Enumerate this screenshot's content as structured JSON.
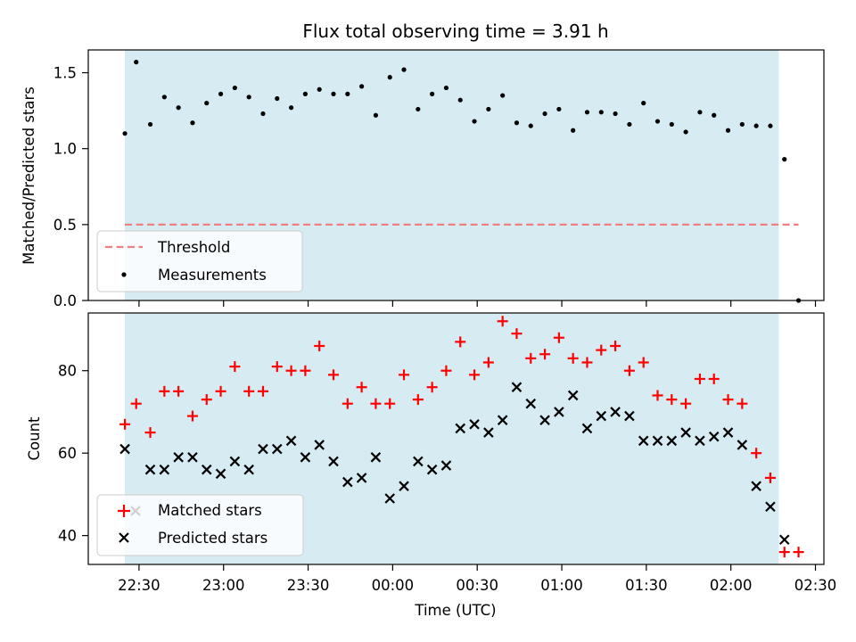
{
  "chart_data": [
    {
      "type": "scatter",
      "title": "Flux total observing time = 3.91 h",
      "xlabel": "",
      "ylabel": "Matched/Predicted stars",
      "ylim": [
        0,
        1.65
      ],
      "yticks": [
        "0.0",
        "0.5",
        "1.0",
        "1.5"
      ],
      "shaded_region_color": "#add8e6",
      "threshold": {
        "name": "Threshold",
        "value": 0.5,
        "color": "#f08080"
      },
      "series": [
        {
          "name": "Measurements",
          "color": "#000000",
          "x": [
            "22:25",
            "22:29",
            "22:34",
            "22:39",
            "22:44",
            "22:49",
            "22:54",
            "22:59",
            "23:04",
            "23:09",
            "23:14",
            "23:19",
            "23:24",
            "23:29",
            "23:34",
            "23:39",
            "23:44",
            "23:49",
            "23:54",
            "23:59",
            "24:04",
            "24:09",
            "24:14",
            "24:19",
            "24:24",
            "24:29",
            "24:34",
            "24:39",
            "24:44",
            "24:49",
            "24:54",
            "24:59",
            "25:04",
            "25:09",
            "25:14",
            "25:19",
            "25:24",
            "25:29",
            "25:34",
            "25:39",
            "25:44",
            "25:49",
            "25:54",
            "25:59",
            "26:04",
            "26:09",
            "26:14",
            "26:19",
            "26:24"
          ],
          "values": [
            1.1,
            1.57,
            1.16,
            1.34,
            1.27,
            1.17,
            1.3,
            1.36,
            1.4,
            1.34,
            1.23,
            1.33,
            1.27,
            1.36,
            1.39,
            1.36,
            1.36,
            1.41,
            1.22,
            1.47,
            1.52,
            1.26,
            1.36,
            1.4,
            1.32,
            1.18,
            1.26,
            1.35,
            1.17,
            1.15,
            1.23,
            1.26,
            1.12,
            1.24,
            1.24,
            1.23,
            1.16,
            1.3,
            1.18,
            1.16,
            1.11,
            1.24,
            1.22,
            1.12,
            1.16,
            1.15,
            1.15,
            0.93,
            0.0
          ]
        }
      ],
      "legend": "lower-left"
    },
    {
      "type": "scatter",
      "xlabel": "Time (UTC)",
      "ylabel": "Count",
      "ylim": [
        33,
        94
      ],
      "yticks": [
        "40",
        "60",
        "80"
      ],
      "xticks": [
        "22:30",
        "23:00",
        "23:30",
        "00:00",
        "00:30",
        "01:00",
        "01:30",
        "02:00",
        "02:30"
      ],
      "shaded_region_color": "#add8e6",
      "series": [
        {
          "name": "Matched stars",
          "marker": "plus",
          "color": "#ff0000",
          "x": [
            "22:25",
            "22:29",
            "22:34",
            "22:39",
            "22:44",
            "22:49",
            "22:54",
            "22:59",
            "23:04",
            "23:09",
            "23:14",
            "23:19",
            "23:24",
            "23:29",
            "23:34",
            "23:39",
            "23:44",
            "23:49",
            "23:54",
            "23:59",
            "24:04",
            "24:09",
            "24:14",
            "24:19",
            "24:24",
            "24:29",
            "24:34",
            "24:39",
            "24:44",
            "24:49",
            "24:54",
            "24:59",
            "25:04",
            "25:09",
            "25:14",
            "25:19",
            "25:24",
            "25:29",
            "25:34",
            "25:39",
            "25:44",
            "25:49",
            "25:54",
            "25:59",
            "26:04",
            "26:09",
            "26:14",
            "26:19",
            "26:24"
          ],
          "values": [
            67,
            72,
            65,
            75,
            75,
            69,
            73,
            75,
            81,
            75,
            75,
            81,
            80,
            80,
            86,
            79,
            72,
            76,
            72,
            72,
            79,
            73,
            76,
            80,
            87,
            79,
            82,
            92,
            89,
            83,
            84,
            88,
            83,
            82,
            85,
            86,
            80,
            82,
            74,
            73,
            72,
            78,
            78,
            73,
            72,
            60,
            54,
            36,
            36
          ]
        },
        {
          "name": "Predicted stars",
          "marker": "x",
          "color": "#000000",
          "x": [
            "22:25",
            "22:34",
            "22:39",
            "22:44",
            "22:49",
            "22:54",
            "22:59",
            "23:04",
            "23:09",
            "23:14",
            "23:19",
            "23:24",
            "23:29",
            "23:34",
            "23:39",
            "23:44",
            "23:49",
            "23:54",
            "23:59",
            "24:04",
            "24:09",
            "24:14",
            "24:19",
            "24:24",
            "24:29",
            "24:34",
            "24:39",
            "24:44",
            "24:49",
            "24:54",
            "24:59",
            "25:04",
            "25:09",
            "25:14",
            "25:19",
            "25:24",
            "25:29",
            "25:34",
            "25:39",
            "25:44",
            "25:49",
            "25:54",
            "25:59",
            "26:04",
            "26:09",
            "26:14",
            "26:19"
          ],
          "values": [
            61,
            56,
            56,
            59,
            59,
            56,
            55,
            58,
            56,
            61,
            61,
            63,
            59,
            62,
            58,
            53,
            54,
            59,
            49,
            52,
            58,
            56,
            57,
            66,
            67,
            65,
            68,
            76,
            72,
            68,
            70,
            74,
            66,
            69,
            70,
            69,
            63,
            63,
            63,
            65,
            63,
            64,
            65,
            62,
            52,
            47,
            39
          ]
        }
      ],
      "legend": "lower-left"
    }
  ]
}
